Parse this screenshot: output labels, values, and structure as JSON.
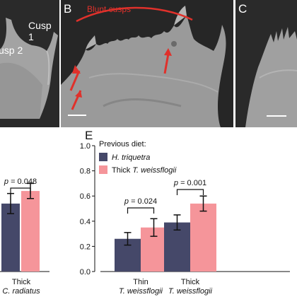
{
  "panels": {
    "a": {
      "labels": [
        "Cusp 1",
        "usp 2"
      ]
    },
    "b": {
      "letter": "B",
      "annotation": "Blunt cusps"
    },
    "c": {
      "letter": "C"
    }
  },
  "colors": {
    "series1": "#454869",
    "series2": "#f5959a",
    "annotation": "#e0312b",
    "sem_background": "#262626",
    "sem_surface": "#9c9c9c"
  },
  "chart_data": [
    {
      "type": "bar",
      "panel_letter": "",
      "categories": [
        "Thick C. radiatus"
      ],
      "category_lines": [
        [
          "Thick",
          "C. radiatus"
        ]
      ],
      "series": [
        {
          "values": [
            0.54
          ],
          "errors": [
            0.08
          ]
        },
        {
          "values": [
            0.64
          ],
          "errors": [
            0.06
          ]
        }
      ],
      "annotations": [
        "p = 0.048"
      ],
      "ylim": [
        0,
        1.0
      ]
    },
    {
      "type": "bar",
      "panel_letter": "E",
      "legend_title": "Previous diet:",
      "categories": [
        "Thin T. weissflogii",
        "Thick T. weissflogii"
      ],
      "category_lines": [
        [
          "Thin",
          "T. weissflogii"
        ],
        [
          "Thick",
          "T. weissflogii"
        ]
      ],
      "series": [
        {
          "name": "H. triquetra",
          "values": [
            0.26,
            0.39
          ],
          "errors": [
            0.05,
            0.06
          ]
        },
        {
          "name": "Thick T. weissflogii",
          "values": [
            0.35,
            0.54
          ],
          "errors": [
            0.07,
            0.06
          ]
        }
      ],
      "annotations": [
        "p = 0.024",
        "p = 0.001"
      ],
      "yticks": [
        "0.0",
        "0.2",
        "0.4",
        "0.6",
        "0.8",
        "1.0"
      ],
      "ylim": [
        0,
        1.0
      ],
      "legend_position": "top-left"
    }
  ]
}
